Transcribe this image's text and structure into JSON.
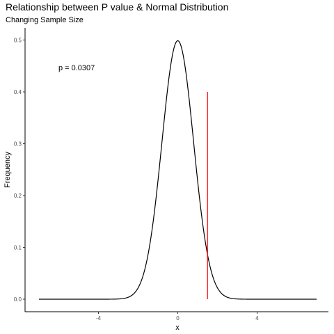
{
  "chart_data": {
    "type": "line",
    "title": "Relationship between P value & Normal Distribution",
    "subtitle": "Changing Sample Size",
    "xlabel": "x",
    "ylabel": "Frequency",
    "xlim": [
      -7,
      7
    ],
    "ylim": [
      0,
      0.5
    ],
    "x_ticks": [
      -4,
      0,
      4
    ],
    "y_ticks": [
      0.0,
      0.1,
      0.2,
      0.3,
      0.4,
      0.5
    ],
    "x_tick_labels": [
      "-4",
      "0",
      "4"
    ],
    "y_tick_labels": [
      "0.0",
      "0.1",
      "0.2",
      "0.3",
      "0.4",
      "0.5"
    ],
    "grid": false,
    "series": [
      {
        "kind": "normal-density-curve",
        "mean": 0,
        "sd": 0.8,
        "x_range": [
          -7,
          7
        ],
        "color": "#000000"
      }
    ],
    "reference_line": {
      "x": 1.5,
      "y_from": 0,
      "y_to": 0.4,
      "color": "#ff0000"
    },
    "annotation": {
      "text": "p =  0.0307",
      "x": -5.1,
      "y": 0.447
    }
  }
}
